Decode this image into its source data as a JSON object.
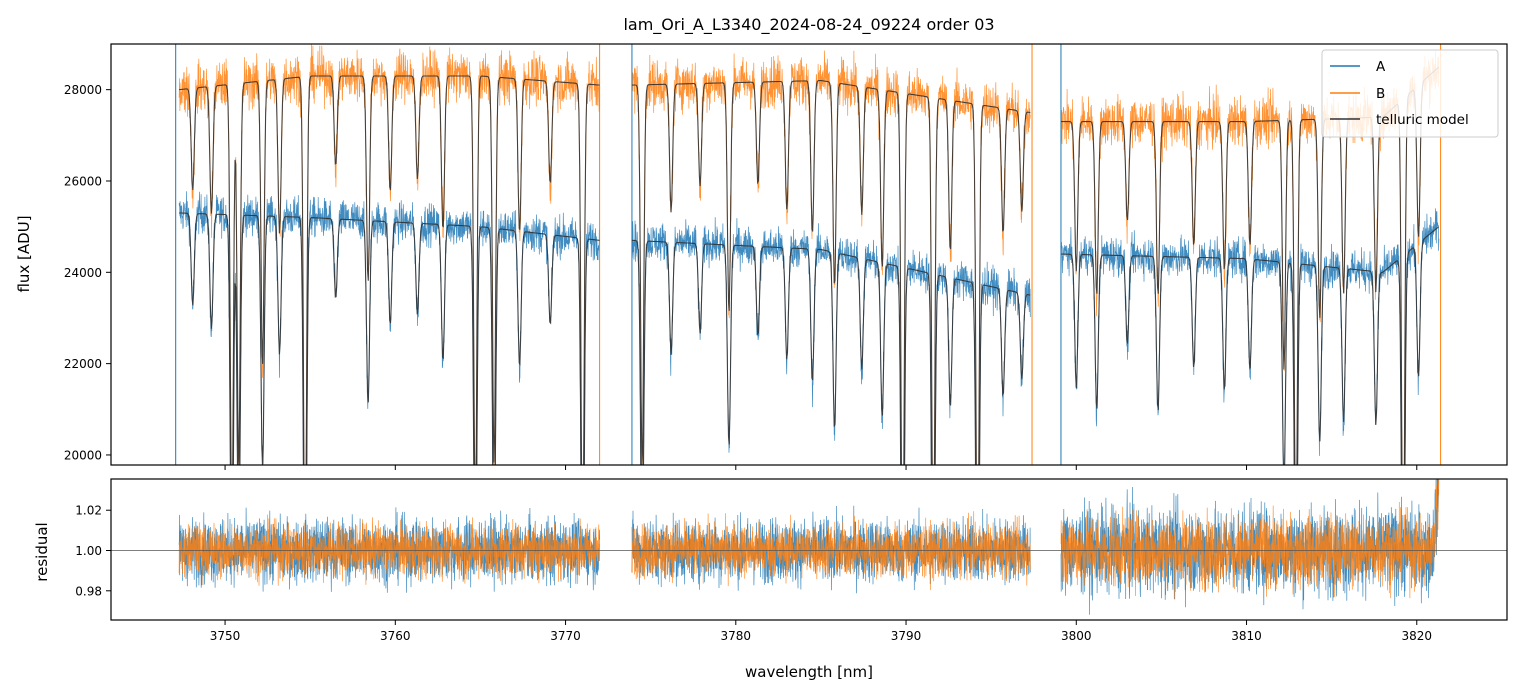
{
  "chart_data": [
    {
      "type": "line",
      "panel": "flux",
      "title": "lam_Ori_A_L3340_2024-08-24_09224  order 03",
      "xlabel": "",
      "ylabel": "flux [ADU]",
      "xlim": [
        3743.3,
        3825.3
      ],
      "ylim": [
        19780,
        29000
      ],
      "yticks": [
        20000,
        22000,
        24000,
        26000,
        28000
      ],
      "xticks": [
        3750,
        3760,
        3770,
        3780,
        3790,
        3800,
        3810,
        3820
      ],
      "x_tick_labels_shown": false,
      "legend_position": "top-right",
      "segments_nm": [
        [
          3747.3,
          3772.0
        ],
        [
          3773.9,
          3797.3
        ],
        [
          3799.1,
          3821.3
        ]
      ],
      "edge_spikes_nm": [
        3747.1,
        3772.0,
        3773.9,
        3797.4,
        3799.1,
        3821.4
      ],
      "series": [
        {
          "name": "A",
          "color": "#1f77b4",
          "continuum_points": [
            [
              3747.3,
              25300
            ],
            [
              3755,
              25200
            ],
            [
              3765,
              25000
            ],
            [
              3772.0,
              24700
            ],
            [
              3773.9,
              24700
            ],
            [
              3785,
              24500
            ],
            [
              3797.3,
              23500
            ],
            [
              3799.1,
              24400
            ],
            [
              3810,
              24300
            ],
            [
              3818,
              24000
            ],
            [
              3821.3,
              25000
            ]
          ],
          "noise_amplitude": 350
        },
        {
          "name": "B",
          "color": "#ff7f0e",
          "continuum_points": [
            [
              3747.3,
              28000
            ],
            [
              3755,
              28300
            ],
            [
              3765,
              28300
            ],
            [
              3772.0,
              28100
            ],
            [
              3773.9,
              28100
            ],
            [
              3785,
              28200
            ],
            [
              3797.3,
              27500
            ],
            [
              3799.1,
              27300
            ],
            [
              3810,
              27300
            ],
            [
              3818,
              27400
            ],
            [
              3821.3,
              28500
            ]
          ],
          "noise_amplitude": 450
        },
        {
          "name": "telluric model",
          "color": "#333333",
          "follows": [
            "A",
            "B"
          ]
        }
      ],
      "absorption_lines": [
        {
          "x": 3748.1,
          "depth": 0.08
        },
        {
          "x": 3749.2,
          "depth": 0.1
        },
        {
          "x": 3750.4,
          "depth": 0.35
        },
        {
          "x": 3750.8,
          "depth": 0.3
        },
        {
          "x": 3752.2,
          "depth": 0.22
        },
        {
          "x": 3753.2,
          "depth": 0.12
        },
        {
          "x": 3754.7,
          "depth": 0.4
        },
        {
          "x": 3756.5,
          "depth": 0.07
        },
        {
          "x": 3758.4,
          "depth": 0.16
        },
        {
          "x": 3759.7,
          "depth": 0.09
        },
        {
          "x": 3761.3,
          "depth": 0.08
        },
        {
          "x": 3762.8,
          "depth": 0.12
        },
        {
          "x": 3764.7,
          "depth": 0.35
        },
        {
          "x": 3765.8,
          "depth": 0.3
        },
        {
          "x": 3767.3,
          "depth": 0.12
        },
        {
          "x": 3769.1,
          "depth": 0.08
        },
        {
          "x": 3771.0,
          "depth": 0.38
        },
        {
          "x": 3774.5,
          "depth": 0.3
        },
        {
          "x": 3776.2,
          "depth": 0.1
        },
        {
          "x": 3777.9,
          "depth": 0.08
        },
        {
          "x": 3779.6,
          "depth": 0.18
        },
        {
          "x": 3781.3,
          "depth": 0.08
        },
        {
          "x": 3783.0,
          "depth": 0.1
        },
        {
          "x": 3784.5,
          "depth": 0.12
        },
        {
          "x": 3785.8,
          "depth": 0.16
        },
        {
          "x": 3787.4,
          "depth": 0.1
        },
        {
          "x": 3788.6,
          "depth": 0.14
        },
        {
          "x": 3789.8,
          "depth": 0.4
        },
        {
          "x": 3791.6,
          "depth": 0.38
        },
        {
          "x": 3792.6,
          "depth": 0.12
        },
        {
          "x": 3794.2,
          "depth": 0.4
        },
        {
          "x": 3795.7,
          "depth": 0.1
        },
        {
          "x": 3796.8,
          "depth": 0.08
        },
        {
          "x": 3800.0,
          "depth": 0.12
        },
        {
          "x": 3801.2,
          "depth": 0.14
        },
        {
          "x": 3803.0,
          "depth": 0.08
        },
        {
          "x": 3804.8,
          "depth": 0.14
        },
        {
          "x": 3806.9,
          "depth": 0.1
        },
        {
          "x": 3808.7,
          "depth": 0.12
        },
        {
          "x": 3810.2,
          "depth": 0.1
        },
        {
          "x": 3812.2,
          "depth": 0.2
        },
        {
          "x": 3812.9,
          "depth": 0.35
        },
        {
          "x": 3814.3,
          "depth": 0.16
        },
        {
          "x": 3815.7,
          "depth": 0.14
        },
        {
          "x": 3817.6,
          "depth": 0.14
        },
        {
          "x": 3819.2,
          "depth": 0.4
        },
        {
          "x": 3820.1,
          "depth": 0.12
        }
      ]
    },
    {
      "type": "line",
      "panel": "residual",
      "title": "",
      "xlabel": "wavelength [nm]",
      "ylabel": "residual",
      "xlim": [
        3743.3,
        3825.3
      ],
      "ylim": [
        0.9655,
        1.0355
      ],
      "yticks": [
        0.98,
        1.0,
        1.02
      ],
      "ytick_labels": [
        "0.98",
        "1.00",
        "1.02"
      ],
      "xticks": [
        3750,
        3760,
        3770,
        3780,
        3790,
        3800,
        3810,
        3820
      ],
      "xtick_labels": [
        "3750",
        "3760",
        "3770",
        "3780",
        "3790",
        "3800",
        "3810",
        "3820"
      ],
      "reference_line": 1.0,
      "series": [
        {
          "name": "A",
          "color": "#1f77b4",
          "noise_amplitude": 0.012
        },
        {
          "name": "B",
          "color": "#ff7f0e",
          "noise_amplitude": 0.01
        }
      ]
    }
  ],
  "legend": {
    "items": [
      {
        "label": "A",
        "color": "#1f77b4"
      },
      {
        "label": "B",
        "color": "#ff7f0e"
      },
      {
        "label": "telluric model",
        "color": "#333333"
      }
    ]
  }
}
